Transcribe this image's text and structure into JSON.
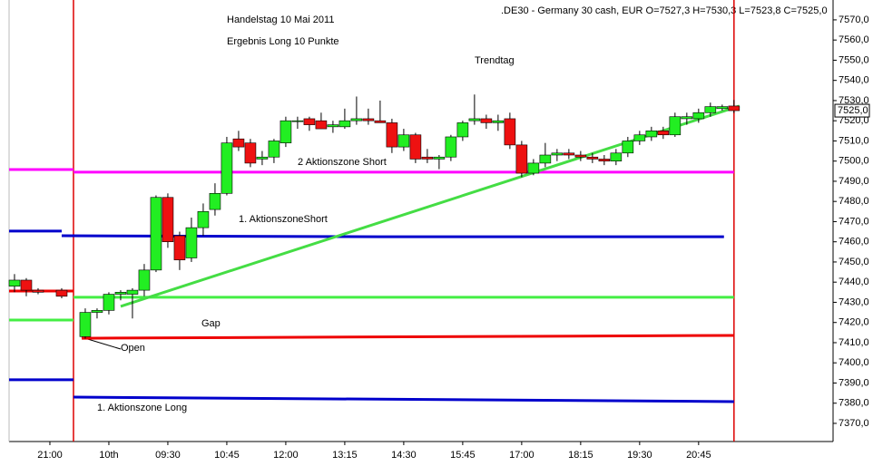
{
  "chart_data": {
    "type": "candlestick",
    "title": ".DE30 - Germany 30 cash, EUR O=7527,3 H=7530,3 L=7523,8 C=7525,0",
    "annotations": [
      "Handelstag 10 Mai 2011",
      "Ergebnis Long 10 Punkte",
      "Trendtag",
      "2 Aktionszone Short",
      "1. AktionszoneShort",
      "Gap",
      "Open",
      "1. Aktionszone Long"
    ],
    "up_color": "#22ee22",
    "down_color": "#ee1111",
    "x": [
      -3,
      -2,
      -1,
      1,
      3,
      4,
      5,
      6,
      7,
      8,
      9,
      10,
      11,
      12,
      13,
      14,
      15,
      16,
      17,
      18,
      19,
      20,
      21,
      22,
      23,
      24,
      25,
      26,
      27,
      28,
      29,
      30,
      31,
      32,
      33,
      34,
      35,
      36,
      37,
      38,
      39,
      40,
      41,
      42,
      43,
      44,
      45,
      46,
      47,
      48,
      49,
      50,
      51,
      52,
      53,
      54,
      55,
      56,
      57,
      58
    ],
    "open": [
      7438,
      7441,
      7436,
      7436,
      7413,
      7425,
      7426,
      7434,
      7434,
      7436,
      7446,
      7482,
      7463,
      7452,
      7467,
      7476,
      7484,
      7511,
      7509,
      7501,
      7502,
      7509,
      7520,
      7521,
      7520,
      7517,
      7517,
      7520,
      7521,
      7520,
      7519,
      7507,
      7513,
      7502,
      7501,
      7502,
      7512,
      7520,
      7521,
      7519,
      7521,
      7508,
      7494,
      7499,
      7503,
      7504,
      7503,
      7502,
      7501,
      7500,
      7504,
      7510,
      7512,
      7515,
      7513,
      7521,
      7521,
      7524,
      7526,
      7527.3
    ],
    "high": [
      7444,
      7442,
      7437,
      7437,
      7427,
      7427,
      7435,
      7436,
      7437,
      7449,
      7483,
      7484,
      7465,
      7472,
      7479,
      7489,
      7512,
      7515,
      7511,
      7505,
      7511,
      7522,
      7522,
      7522,
      7524,
      7520,
      7526,
      7532,
      7526,
      7530,
      7521,
      7516,
      7514,
      7506,
      7503,
      7513,
      7520,
      7533,
      7523,
      7523,
      7524,
      7510,
      7501,
      7509,
      7506,
      7506,
      7505,
      7504,
      7503,
      7506,
      7512,
      7515,
      7517,
      7517,
      7524,
      7524,
      7526,
      7529,
      7528,
      7530.3
    ],
    "low": [
      7435,
      7433,
      7434,
      7432,
      7412,
      7422,
      7424,
      7431,
      7422,
      7433,
      7445,
      7457,
      7446,
      7450,
      7463,
      7473,
      7483,
      7505,
      7497,
      7498,
      7499,
      7507,
      7516,
      7515,
      7516,
      7514,
      7516,
      7518,
      7518,
      7519,
      7504,
      7505,
      7499,
      7499,
      7496,
      7500,
      7510,
      7518,
      7516,
      7515,
      7506,
      7492,
      7493,
      7497,
      7500,
      7501,
      7500,
      7499,
      7498,
      7498,
      7502,
      7508,
      7510,
      7511,
      7512,
      7518,
      7519,
      7522,
      7525,
      7523.8
    ],
    "close": [
      7441,
      7436,
      7435,
      7433,
      7425,
      7426,
      7434,
      7435,
      7436,
      7446,
      7482,
      7460,
      7451,
      7467,
      7475,
      7484,
      7509,
      7507,
      7499,
      7502,
      7510,
      7520,
      7520,
      7518,
      7516,
      7518,
      7520,
      7521,
      7520,
      7519,
      7507,
      7513,
      7501,
      7501,
      7502,
      7512,
      7519,
      7521,
      7519,
      7520,
      7508,
      7494,
      7499,
      7503,
      7504,
      7503,
      7502,
      7501,
      7500,
      7504,
      7510,
      7513,
      7515,
      7513,
      7522,
      7522,
      7524,
      7527,
      7527,
      7525
    ],
    "lines": [
      {
        "color": "#ff00ff",
        "x": [
          -3.46,
          2
        ],
        "values": [
          7495.8,
          7495.8
        ]
      },
      {
        "color": "#ff00ff",
        "x": [
          2,
          58
        ],
        "values": [
          7494.5,
          7494.5
        ]
      },
      {
        "color": "#0000cc",
        "x": [
          -3.46,
          1
        ],
        "values": [
          7465.3,
          7465.3
        ]
      },
      {
        "color": "#0000cc",
        "x": [
          1,
          28,
          57.15
        ],
        "values": [
          7463,
          7462.5,
          7462.5
        ]
      },
      {
        "color": "#44ee44",
        "x": [
          -3.46,
          2
        ],
        "values": [
          7421.2,
          7421.2
        ]
      },
      {
        "color": "#44ee44",
        "x": [
          2,
          58
        ],
        "values": [
          7432.5,
          7432.5
        ]
      },
      {
        "color": "#ee0000",
        "x": [
          -3.46,
          2
        ],
        "values": [
          7435.6,
          7435.6
        ]
      },
      {
        "color": "#ee0000",
        "x": [
          2.7,
          58
        ],
        "values": [
          7412.2,
          7413.6
        ]
      },
      {
        "color": "#0000cc",
        "x": [
          -3.46,
          2
        ],
        "values": [
          7391.6,
          7391.6
        ]
      },
      {
        "color": "#0000cc",
        "x": [
          2,
          58
        ],
        "values": [
          7383,
          7380.8
        ]
      },
      {
        "color": "#44dd44",
        "x": [
          6,
          58.46
        ],
        "values": [
          7428,
          7527.3
        ]
      }
    ],
    "vlines": [
      {
        "color": "#dd0000",
        "x": 2
      },
      {
        "color": "#dd0000",
        "x": 58
      }
    ],
    "last_price": {
      "value": 7525,
      "label": "7525,0"
    },
    "xlim": [
      -3.46,
      66.4
    ],
    "xticks": [
      {
        "value": 0,
        "label": "21:00"
      },
      {
        "value": 5,
        "label": "10th"
      },
      {
        "value": 10,
        "label": "09:30"
      },
      {
        "value": 15,
        "label": "10:45"
      },
      {
        "value": 20,
        "label": "12:00"
      },
      {
        "value": 25,
        "label": "13:15"
      },
      {
        "value": 30,
        "label": "14:30"
      },
      {
        "value": 35,
        "label": "15:45"
      },
      {
        "value": 40,
        "label": "17:00"
      },
      {
        "value": 45,
        "label": "18:15"
      },
      {
        "value": 50,
        "label": "19:30"
      },
      {
        "value": 55,
        "label": "20:45"
      }
    ],
    "ylim": [
      7361,
      7577.6
    ],
    "yticks": [
      {
        "value": 7370,
        "label": "7370,0"
      },
      {
        "value": 7380,
        "label": "7380,0"
      },
      {
        "value": 7390,
        "label": "7390,0"
      },
      {
        "value": 7400,
        "label": "7400,0"
      },
      {
        "value": 7410,
        "label": "7410,0"
      },
      {
        "value": 7420,
        "label": "7420,0"
      },
      {
        "value": 7430,
        "label": "7430,0"
      },
      {
        "value": 7440,
        "label": "7440,0"
      },
      {
        "value": 7450,
        "label": "7450,0"
      },
      {
        "value": 7460,
        "label": "7460,0"
      },
      {
        "value": 7470,
        "label": "7470,0"
      },
      {
        "value": 7480,
        "label": "7480,0"
      },
      {
        "value": 7490,
        "label": "7490,0"
      },
      {
        "value": 7500,
        "label": "7500,0"
      },
      {
        "value": 7510,
        "label": "7510,0"
      },
      {
        "value": 7520,
        "label": "7520,0"
      },
      {
        "value": 7530,
        "label": "7530,0"
      },
      {
        "value": 7540,
        "label": "7540,0"
      },
      {
        "value": 7550,
        "label": "7550,0"
      },
      {
        "value": 7560,
        "label": "7560,0"
      },
      {
        "value": 7570,
        "label": "7570,0"
      }
    ]
  }
}
